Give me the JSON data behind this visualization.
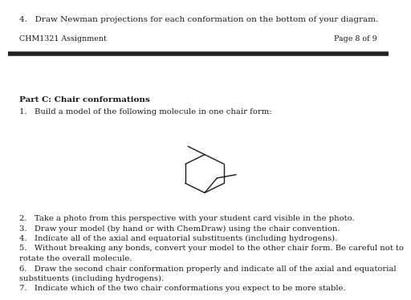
{
  "top_text": "4.   Draw Newman projections for each conformation on the bottom of your diagram.",
  "header_left": "CHM1321 Assignment",
  "header_right": "Page 8 of 9",
  "part_c_title": "Part C: Chair conformations",
  "item1": "1.   Build a model of the following molecule in one chair form:",
  "items": [
    "2.   Take a photo from this perspective with your student card visible in the photo.",
    "3.   Draw your model (by hand or with ChemDraw) using the chair convention.",
    "4.   Indicate all of the axial and equatorial substituents (including hydrogens).",
    "5.   Without breaking any bonds, convert your model to the other chair form. Be careful not to\n       rotate the overall molecule.",
    "6.   Draw the second chair conformation properly and indicate all of the axial and equatorial\n       substituents (including hydrogens).",
    "7.   Indicate which of the two chair conformations you expect to be more stable."
  ],
  "bg_color": "#ffffff",
  "text_color": "#1a1a1a",
  "divider_color": "#222222",
  "font_size_top": 7.5,
  "font_size_header": 6.8,
  "font_size_body": 7.2,
  "font_size_title": 7.5
}
